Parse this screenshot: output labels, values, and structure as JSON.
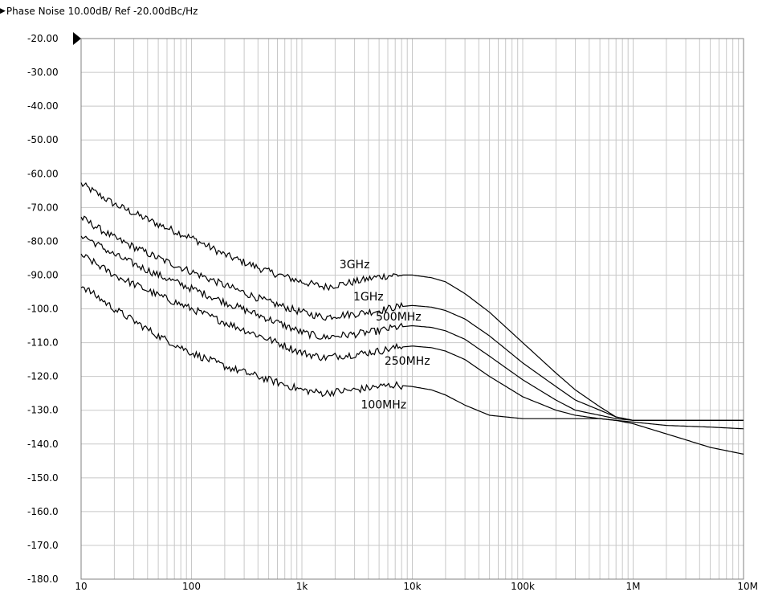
{
  "header": {
    "marker_glyph": "▶",
    "title": "Phase Noise 10.00dB/ Ref -20.00dBc/Hz"
  },
  "colors": {
    "background": "#ffffff",
    "grid": "#c8c8c8",
    "frame": "#808080",
    "trace": "#000000"
  },
  "chart_data": {
    "type": "line",
    "title": "Phase Noise 10.00dB/ Ref -20.00dBc/Hz",
    "xlabel": "",
    "ylabel": "",
    "x_scale": "log",
    "xlim": [
      10,
      10000000
    ],
    "ylim": [
      -180,
      -20
    ],
    "grid": true,
    "reference_marker": {
      "y": -20
    },
    "x_ticks": [
      {
        "value": 10,
        "label": "10"
      },
      {
        "value": 100,
        "label": "100"
      },
      {
        "value": 1000,
        "label": "1k"
      },
      {
        "value": 10000,
        "label": "10k"
      },
      {
        "value": 100000,
        "label": "100k"
      },
      {
        "value": 1000000,
        "label": "1M"
      },
      {
        "value": 10000000,
        "label": "10M"
      }
    ],
    "y_ticks": [
      {
        "value": -20,
        "label": "-20.00"
      },
      {
        "value": -30,
        "label": "-30.00"
      },
      {
        "value": -40,
        "label": "-40.00"
      },
      {
        "value": -50,
        "label": "-50.00"
      },
      {
        "value": -60,
        "label": "-60.00"
      },
      {
        "value": -70,
        "label": "-70.00"
      },
      {
        "value": -80,
        "label": "-80.00"
      },
      {
        "value": -90,
        "label": "-90.00"
      },
      {
        "value": -100,
        "label": "-100.0"
      },
      {
        "value": -110,
        "label": "-110.0"
      },
      {
        "value": -120,
        "label": "-120.0"
      },
      {
        "value": -130,
        "label": "-130.0"
      },
      {
        "value": -140,
        "label": "-140.0"
      },
      {
        "value": -150,
        "label": "-150.0"
      },
      {
        "value": -160,
        "label": "-160.0"
      },
      {
        "value": -170,
        "label": "-170.0"
      },
      {
        "value": -180,
        "label": "-180.0"
      }
    ],
    "series": [
      {
        "name": "3GHz",
        "label_at": {
          "x": 3000,
          "y": -88
        },
        "x": [
          10,
          20,
          50,
          100,
          200,
          500,
          1000,
          1600,
          2000,
          3000,
          5000,
          7000,
          10000,
          15000,
          20000,
          30000,
          50000,
          100000,
          200000,
          300000,
          500000,
          700000,
          1000000,
          2000000,
          5000000,
          10000000
        ],
        "y": [
          -63,
          -69,
          -75,
          -79,
          -84,
          -89,
          -92,
          -93.5,
          -93,
          -92,
          -90.5,
          -90,
          -90,
          -90.8,
          -92,
          -95.5,
          -101,
          -110,
          -119,
          -124,
          -129,
          -132,
          -133,
          -133,
          -133,
          -133
        ]
      },
      {
        "name": "1GHz",
        "label_at": {
          "x": 4000,
          "y": -97.5
        },
        "x": [
          10,
          20,
          50,
          100,
          200,
          500,
          1000,
          1600,
          2000,
          3000,
          5000,
          7000,
          10000,
          15000,
          20000,
          30000,
          50000,
          100000,
          200000,
          300000,
          500000,
          700000,
          1000000,
          2000000,
          5000000,
          10000000
        ],
        "y": [
          -73,
          -79,
          -85,
          -89,
          -93,
          -98,
          -101,
          -102.5,
          -102,
          -101.5,
          -100.5,
          -99.5,
          -99,
          -99.5,
          -100.5,
          -103,
          -108,
          -116,
          -123,
          -127,
          -130,
          -132,
          -133,
          -133,
          -133,
          -133
        ]
      },
      {
        "name": "500MHz",
        "label_at": {
          "x": 7500,
          "y": -103.5
        },
        "x": [
          10,
          20,
          50,
          100,
          200,
          500,
          1000,
          1600,
          2000,
          3000,
          5000,
          7000,
          10000,
          15000,
          20000,
          30000,
          50000,
          100000,
          200000,
          300000,
          500000,
          700000,
          1000000,
          2000000,
          5000000,
          10000000
        ],
        "y": [
          -78,
          -84,
          -90,
          -94,
          -98,
          -103,
          -107,
          -108.5,
          -108,
          -107.5,
          -106.5,
          -105.5,
          -105,
          -105.5,
          -106.5,
          -109,
          -114,
          -121,
          -127,
          -130,
          -131.5,
          -132.5,
          -133,
          -133,
          -133,
          -133
        ]
      },
      {
        "name": "250MHz",
        "label_at": {
          "x": 9000,
          "y": -116.5
        },
        "x": [
          10,
          20,
          50,
          100,
          200,
          500,
          1000,
          1600,
          2000,
          3000,
          5000,
          7000,
          10000,
          15000,
          20000,
          30000,
          50000,
          100000,
          200000,
          300000,
          500000,
          700000,
          1000000,
          2000000,
          5000000,
          10000000
        ],
        "y": [
          -84,
          -90,
          -96,
          -100,
          -104,
          -109,
          -113,
          -114.5,
          -114,
          -113.5,
          -112.5,
          -111.5,
          -111,
          -111.5,
          -112.5,
          -115,
          -120,
          -126,
          -130,
          -131.5,
          -132.5,
          -133,
          -133.5,
          -134.5,
          -135,
          -135.5
        ]
      },
      {
        "name": "100MHz",
        "label_at": {
          "x": 5500,
          "y": -129.5
        },
        "x": [
          10,
          20,
          50,
          100,
          200,
          500,
          1000,
          1600,
          2000,
          3000,
          5000,
          7000,
          10000,
          15000,
          20000,
          30000,
          50000,
          100000,
          200000,
          300000,
          500000,
          700000,
          1000000,
          2000000,
          5000000,
          10000000
        ],
        "y": [
          -93,
          -100,
          -108,
          -113,
          -117,
          -121,
          -124,
          -125,
          -124.5,
          -124,
          -123,
          -122.5,
          -123,
          -124,
          -125.5,
          -128.5,
          -131.5,
          -132.5,
          -132.5,
          -132.5,
          -132.5,
          -133,
          -134,
          -137,
          -141,
          -143
        ]
      }
    ]
  }
}
